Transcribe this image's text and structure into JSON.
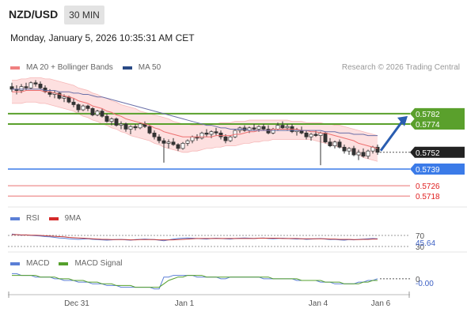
{
  "header": {
    "symbol": "NZD/USD",
    "timeframe": "30 MIN",
    "datetime": "Monday, January 5, 2026 10:35:31 AM CET"
  },
  "main_legend": [
    {
      "label": "MA 20 + Bollinger Bands",
      "color": "#f08080"
    },
    {
      "label": "MA 50",
      "color": "#2a4a86"
    }
  ],
  "credit": "Research © 2026 Trading Central",
  "colors": {
    "up_candle": "#ffffff",
    "down_candle": "#333333",
    "bull_arrow": "#2a5db0",
    "resistance": "#5aa02c",
    "support_blue": "#3b7be8",
    "support_red": "#f0a0a0",
    "bollinger_fill": "#fde0e0"
  },
  "levels": [
    {
      "value": "0.5782",
      "type": "resistance"
    },
    {
      "value": "0.5774",
      "type": "resistance"
    },
    {
      "value": "0.5752",
      "type": "last"
    },
    {
      "value": "0.5739",
      "type": "pivot"
    },
    {
      "value": "0.5726",
      "type": "support"
    },
    {
      "value": "0.5718",
      "type": "support"
    }
  ],
  "rsi": {
    "legend": [
      {
        "label": "RSI",
        "color": "#5b7fd6"
      },
      {
        "label": "9MA",
        "color": "#d42a2a"
      }
    ],
    "level_labels": [
      "70",
      "30"
    ],
    "value": "45.64"
  },
  "macd": {
    "legend": [
      {
        "label": "MACD",
        "color": "#5b7fd6"
      },
      {
        "label": "MACD Signal",
        "color": "#55a02c"
      }
    ],
    "zero_label": "0",
    "value": "-0.00"
  },
  "x_axis": [
    "Dec 31",
    "Jan 1",
    "Jan 4",
    "Jan 6"
  ],
  "chart_data": {
    "type": "candlestick",
    "ylim": [
      0.5712,
      0.5812
    ],
    "candles": [
      [
        0.5803,
        0.5806,
        0.5799,
        0.5801
      ],
      [
        0.5801,
        0.5804,
        0.5797,
        0.58
      ],
      [
        0.58,
        0.5805,
        0.5798,
        0.5803
      ],
      [
        0.5803,
        0.5806,
        0.58,
        0.5802
      ],
      [
        0.5802,
        0.5807,
        0.5801,
        0.5806
      ],
      [
        0.5806,
        0.5808,
        0.5803,
        0.5805
      ],
      [
        0.5805,
        0.5807,
        0.5801,
        0.5802
      ],
      [
        0.5802,
        0.5804,
        0.5798,
        0.5799
      ],
      [
        0.5799,
        0.5801,
        0.5795,
        0.5797
      ],
      [
        0.5797,
        0.58,
        0.5794,
        0.5798
      ],
      [
        0.5798,
        0.5799,
        0.5793,
        0.5794
      ],
      [
        0.5794,
        0.5797,
        0.5791,
        0.5795
      ],
      [
        0.5795,
        0.5796,
        0.579,
        0.5791
      ],
      [
        0.5791,
        0.5794,
        0.5787,
        0.5789
      ],
      [
        0.5789,
        0.579,
        0.5783,
        0.5785
      ],
      [
        0.5785,
        0.5789,
        0.5784,
        0.5788
      ],
      [
        0.5788,
        0.5789,
        0.5784,
        0.5786
      ],
      [
        0.5786,
        0.5787,
        0.578,
        0.5781
      ],
      [
        0.5781,
        0.5785,
        0.578,
        0.5784
      ],
      [
        0.5784,
        0.5786,
        0.5779,
        0.578
      ],
      [
        0.578,
        0.5782,
        0.5775,
        0.5776
      ],
      [
        0.5776,
        0.5779,
        0.5773,
        0.5778
      ],
      [
        0.5778,
        0.5779,
        0.5772,
        0.5773
      ],
      [
        0.5773,
        0.5776,
        0.577,
        0.5774
      ],
      [
        0.5774,
        0.5775,
        0.5768,
        0.577
      ],
      [
        0.577,
        0.5773,
        0.5766,
        0.5772
      ],
      [
        0.5772,
        0.5774,
        0.5769,
        0.5771
      ],
      [
        0.5771,
        0.5775,
        0.577,
        0.5774
      ],
      [
        0.5774,
        0.5776,
        0.5771,
        0.5772
      ],
      [
        0.5772,
        0.5773,
        0.5766,
        0.5767
      ],
      [
        0.5767,
        0.5769,
        0.5762,
        0.5764
      ],
      [
        0.5764,
        0.5766,
        0.5759,
        0.5761
      ],
      [
        0.5761,
        0.5763,
        0.5744,
        0.5759
      ],
      [
        0.5759,
        0.5762,
        0.5755,
        0.576
      ],
      [
        0.576,
        0.5763,
        0.5757,
        0.5758
      ],
      [
        0.5758,
        0.5759,
        0.5753,
        0.5755
      ],
      [
        0.5755,
        0.576,
        0.5754,
        0.5759
      ],
      [
        0.5759,
        0.5762,
        0.5757,
        0.5761
      ],
      [
        0.5761,
        0.5765,
        0.5759,
        0.5764
      ],
      [
        0.5764,
        0.5766,
        0.5761,
        0.5763
      ],
      [
        0.5763,
        0.5768,
        0.5762,
        0.5767
      ],
      [
        0.5767,
        0.577,
        0.5764,
        0.5766
      ],
      [
        0.5766,
        0.5769,
        0.5763,
        0.5768
      ],
      [
        0.5768,
        0.5771,
        0.5765,
        0.5767
      ],
      [
        0.5767,
        0.5769,
        0.5762,
        0.5764
      ],
      [
        0.5764,
        0.5766,
        0.5759,
        0.5761
      ],
      [
        0.5761,
        0.5765,
        0.576,
        0.5764
      ],
      [
        0.5764,
        0.577,
        0.5763,
        0.5769
      ],
      [
        0.5769,
        0.5772,
        0.5767,
        0.5771
      ],
      [
        0.5771,
        0.5773,
        0.5768,
        0.5769
      ],
      [
        0.5769,
        0.5772,
        0.5767,
        0.5771
      ],
      [
        0.5771,
        0.5774,
        0.5769,
        0.577
      ],
      [
        0.577,
        0.5773,
        0.5768,
        0.5772
      ],
      [
        0.5772,
        0.5774,
        0.5769,
        0.577
      ],
      [
        0.577,
        0.5773,
        0.5766,
        0.5767
      ],
      [
        0.5767,
        0.5771,
        0.5766,
        0.577
      ],
      [
        0.577,
        0.5775,
        0.5769,
        0.5773
      ],
      [
        0.5773,
        0.5776,
        0.577,
        0.5771
      ],
      [
        0.5771,
        0.5774,
        0.5769,
        0.5772
      ],
      [
        0.5772,
        0.5774,
        0.5767,
        0.5768
      ],
      [
        0.5768,
        0.5771,
        0.5765,
        0.5769
      ],
      [
        0.5769,
        0.5772,
        0.5766,
        0.5767
      ],
      [
        0.5767,
        0.5769,
        0.5762,
        0.5764
      ],
      [
        0.5764,
        0.5767,
        0.5761,
        0.5766
      ],
      [
        0.5766,
        0.5769,
        0.5764,
        0.5765
      ],
      [
        0.5765,
        0.5768,
        0.5742,
        0.5767
      ],
      [
        0.5767,
        0.5768,
        0.5759,
        0.576
      ],
      [
        0.576,
        0.5763,
        0.5756,
        0.5757
      ],
      [
        0.5757,
        0.5761,
        0.5755,
        0.576
      ],
      [
        0.576,
        0.5762,
        0.5755,
        0.5756
      ],
      [
        0.5756,
        0.5758,
        0.5751,
        0.5753
      ],
      [
        0.5753,
        0.5756,
        0.575,
        0.5755
      ],
      [
        0.5755,
        0.5757,
        0.5749,
        0.575
      ],
      [
        0.575,
        0.5754,
        0.5746,
        0.5752
      ],
      [
        0.5752,
        0.5755,
        0.5748,
        0.5749
      ],
      [
        0.5749,
        0.5754,
        0.5747,
        0.5753
      ],
      [
        0.5753,
        0.5757,
        0.5751,
        0.5756
      ],
      [
        0.5756,
        0.5758,
        0.575,
        0.5752
      ]
    ],
    "ma20": [
      0.5799,
      0.5799,
      0.5799,
      0.58,
      0.58,
      0.58,
      0.58,
      0.5799,
      0.5799,
      0.5798,
      0.5797,
      0.5796,
      0.5795,
      0.5794,
      0.5792,
      0.5791,
      0.579,
      0.5788,
      0.5787,
      0.5786,
      0.5784,
      0.5783,
      0.5781,
      0.578,
      0.5778,
      0.5777,
      0.5776,
      0.5775,
      0.5774,
      0.5773,
      0.5771,
      0.577,
      0.5768,
      0.5767,
      0.5766,
      0.5765,
      0.5764,
      0.5764,
      0.5764,
      0.5764,
      0.5764,
      0.5764,
      0.5764,
      0.5765,
      0.5765,
      0.5765,
      0.5765,
      0.5766,
      0.5766,
      0.5767,
      0.5768,
      0.5768,
      0.5769,
      0.5769,
      0.5769,
      0.577,
      0.577,
      0.577,
      0.577,
      0.577,
      0.577,
      0.5769,
      0.5769,
      0.5768,
      0.5768,
      0.5767,
      0.5767,
      0.5766,
      0.5765,
      0.5764,
      0.5763,
      0.5762,
      0.5761,
      0.5759,
      0.5758,
      0.5757,
      0.5756,
      0.5755
    ],
    "bb_upper": [
      0.5808,
      0.5808,
      0.5809,
      0.5809,
      0.581,
      0.581,
      0.581,
      0.5809,
      0.5809,
      0.5808,
      0.5807,
      0.5806,
      0.5805,
      0.5804,
      0.5802,
      0.5801,
      0.58,
      0.5798,
      0.5797,
      0.5795,
      0.5794,
      0.5792,
      0.5791,
      0.5789,
      0.5788,
      0.5787,
      0.5786,
      0.5784,
      0.5783,
      0.5782,
      0.5781,
      0.578,
      0.5779,
      0.5778,
      0.5776,
      0.5775,
      0.5774,
      0.5774,
      0.5773,
      0.5773,
      0.5773,
      0.5774,
      0.5774,
      0.5774,
      0.5775,
      0.5775,
      0.5775,
      0.5776,
      0.5776,
      0.5776,
      0.5777,
      0.5777,
      0.5777,
      0.5777,
      0.5777,
      0.5777,
      0.5777,
      0.5777,
      0.5777,
      0.5776,
      0.5776,
      0.5776,
      0.5775,
      0.5775,
      0.5775,
      0.5775,
      0.5774,
      0.5774,
      0.5773,
      0.5773,
      0.5772,
      0.5771,
      0.577,
      0.5769,
      0.5768,
      0.5767,
      0.5766,
      0.5765
    ],
    "bb_lower": [
      0.579,
      0.579,
      0.579,
      0.5791,
      0.5791,
      0.5791,
      0.579,
      0.579,
      0.5789,
      0.5788,
      0.5787,
      0.5786,
      0.5785,
      0.5784,
      0.5782,
      0.578,
      0.5779,
      0.5777,
      0.5776,
      0.5774,
      0.5773,
      0.5771,
      0.577,
      0.5768,
      0.5767,
      0.5765,
      0.5764,
      0.5763,
      0.5762,
      0.5761,
      0.5759,
      0.5758,
      0.5756,
      0.5755,
      0.5754,
      0.5753,
      0.5752,
      0.5752,
      0.5753,
      0.5753,
      0.5754,
      0.5755,
      0.5755,
      0.5756,
      0.5756,
      0.5757,
      0.5757,
      0.5757,
      0.5758,
      0.5759,
      0.5759,
      0.576,
      0.576,
      0.5761,
      0.5761,
      0.5762,
      0.5762,
      0.5762,
      0.5762,
      0.5762,
      0.5762,
      0.5762,
      0.5762,
      0.5762,
      0.5761,
      0.576,
      0.5759,
      0.5758,
      0.5757,
      0.5756,
      0.5755,
      0.5754,
      0.5752,
      0.575,
      0.5748,
      0.5747,
      0.5746,
      0.5745
    ],
    "ma50": [
      0.5801,
      0.5801,
      0.5801,
      0.5801,
      0.5801,
      0.5801,
      0.5801,
      0.58,
      0.58,
      0.58,
      0.5799,
      0.5799,
      0.5799,
      0.5798,
      0.5798,
      0.5797,
      0.5797,
      0.5796,
      0.5795,
      0.5795,
      0.5794,
      0.5793,
      0.5792,
      0.5791,
      0.579,
      0.5789,
      0.5788,
      0.5787,
      0.5786,
      0.5785,
      0.5784,
      0.5783,
      0.5782,
      0.5781,
      0.578,
      0.5779,
      0.5778,
      0.5777,
      0.5776,
      0.5775,
      0.5774,
      0.5773,
      0.5773,
      0.5772,
      0.5771,
      0.5771,
      0.577,
      0.577,
      0.577,
      0.577,
      0.5769,
      0.5769,
      0.5769,
      0.5769,
      0.5769,
      0.5769,
      0.5769,
      0.5769,
      0.5769,
      0.5769,
      0.5769,
      0.5769,
      0.5769,
      0.5769,
      0.5769,
      0.5769,
      0.5768,
      0.5768,
      0.5768,
      0.5767,
      0.5767,
      0.5767,
      0.5766,
      0.5766,
      0.5766,
      0.5765,
      0.5765,
      0.5765
    ],
    "rsi_values": [
      62,
      60,
      58,
      59,
      57,
      56,
      55,
      53,
      52,
      50,
      48,
      47,
      45,
      44,
      43,
      44,
      45,
      43,
      42,
      41,
      40,
      41,
      42,
      43,
      41,
      40,
      42,
      43,
      44,
      43,
      42,
      40,
      38,
      41,
      44,
      46,
      47,
      48,
      47,
      46,
      45,
      44,
      46,
      47,
      46,
      45,
      44,
      46,
      47,
      48,
      47,
      46,
      47,
      48,
      46,
      45,
      46,
      47,
      46,
      45,
      44,
      45,
      43,
      44,
      45,
      46,
      44,
      42,
      43,
      41,
      40,
      42,
      41,
      43,
      44,
      45,
      46,
      45
    ],
    "rsi_ma": [
      60,
      60,
      59,
      59,
      58,
      58,
      57,
      56,
      55,
      54,
      53,
      52,
      50,
      49,
      48,
      47,
      46,
      45,
      44,
      43,
      43,
      42,
      42,
      42,
      42,
      41,
      41,
      42,
      42,
      42,
      42,
      41,
      41,
      41,
      41,
      42,
      43,
      44,
      45,
      46,
      46,
      46,
      46,
      46,
      46,
      46,
      46,
      46,
      46,
      46,
      46,
      46,
      47,
      47,
      47,
      47,
      47,
      46,
      46,
      46,
      46,
      45,
      45,
      45,
      45,
      45,
      45,
      44,
      44,
      43,
      43,
      43,
      42,
      42,
      43,
      43,
      44,
      44
    ],
    "macd_values": [
      0.0003,
      0.0003,
      0.0002,
      0.0002,
      0.0002,
      0.0001,
      0.0001,
      0.0001,
      0.0001,
      0.0,
      0.0,
      -0.0001,
      -0.0001,
      -0.0001,
      -0.0002,
      -0.0002,
      -0.0002,
      -0.0003,
      -0.0003,
      -0.0003,
      -0.0004,
      -0.0004,
      -0.0004,
      -0.0005,
      -0.0005,
      -0.0005,
      -0.0005,
      -0.0005,
      -0.0005,
      -0.0005,
      -0.0006,
      -0.0006,
      0.0001,
      0.0001,
      0.0002,
      0.0002,
      0.0002,
      0.0002,
      0.0002,
      0.0001,
      0.0001,
      0.0001,
      0.0001,
      0.0001,
      0.0,
      0.0,
      0.0001,
      0.0001,
      0.0001,
      0.0001,
      0.0001,
      0.0001,
      0.0001,
      0.0,
      0.0,
      0.0,
      0.0,
      0.0,
      0.0,
      0.0,
      -0.0001,
      -0.0001,
      -0.0001,
      -0.0001,
      -0.0001,
      -0.0002,
      -0.0002,
      -0.0002,
      -0.0003,
      -0.0003,
      -0.0003,
      -0.0003,
      -0.0003,
      -0.0002,
      -0.0002,
      -0.0001,
      -0.0001,
      0.0
    ],
    "macd_signal": [
      0.0002,
      0.0002,
      0.0002,
      0.0002,
      0.0002,
      0.0002,
      0.0001,
      0.0001,
      0.0001,
      0.0001,
      0.0,
      0.0,
      0.0,
      -0.0001,
      -0.0001,
      -0.0001,
      -0.0002,
      -0.0002,
      -0.0002,
      -0.0003,
      -0.0003,
      -0.0003,
      -0.0004,
      -0.0004,
      -0.0004,
      -0.0004,
      -0.0005,
      -0.0005,
      -0.0005,
      -0.0005,
      -0.0005,
      -0.0005,
      -0.0003,
      -0.0001,
      0.0,
      0.0001,
      0.0001,
      0.0002,
      0.0002,
      0.0002,
      0.0002,
      0.0001,
      0.0001,
      0.0001,
      0.0001,
      0.0001,
      0.0001,
      0.0001,
      0.0001,
      0.0001,
      0.0001,
      0.0001,
      0.0001,
      0.0001,
      0.0001,
      0.0,
      0.0,
      0.0,
      0.0,
      0.0,
      0.0,
      -0.0001,
      -0.0001,
      -0.0001,
      -0.0001,
      -0.0001,
      -0.0002,
      -0.0002,
      -0.0002,
      -0.0002,
      -0.0003,
      -0.0003,
      -0.0003,
      -0.0003,
      -0.0002,
      -0.0002,
      -0.0001,
      -0.0001
    ],
    "macd_ylim": [
      -0.0008,
      0.0006
    ]
  }
}
